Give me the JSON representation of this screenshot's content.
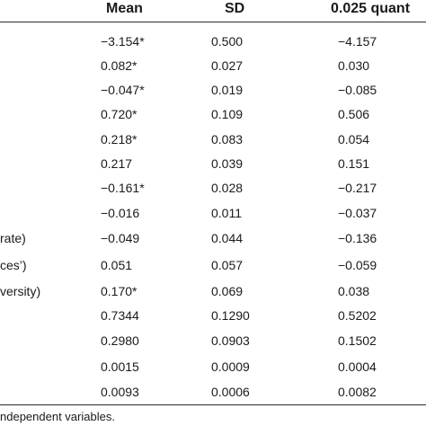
{
  "table": {
    "headers": {
      "mean": "Mean",
      "sd": "SD",
      "quant": "0.025 quant"
    },
    "rows": [
      {
        "label": "",
        "mean": "−3.154*",
        "sd": "0.500",
        "quant": "−4.157"
      },
      {
        "label": "",
        "mean": "0.082*",
        "sd": "0.027",
        "quant": "0.030"
      },
      {
        "label": "",
        "mean": "−0.047*",
        "sd": "0.019",
        "quant": "−0.085"
      },
      {
        "label": "",
        "mean": "0.720*",
        "sd": "0.109",
        "quant": "0.506"
      },
      {
        "label": "",
        "mean": "0.218*",
        "sd": "0.083",
        "quant": "0.054"
      },
      {
        "label": "",
        "mean": "0.217",
        "sd": "0.039",
        "quant": "0.151"
      },
      {
        "label": "",
        "mean": "−0.161*",
        "sd": "0.028",
        "quant": "−0.217"
      },
      {
        "label": "",
        "mean": "−0.016",
        "sd": "0.011",
        "quant": "−0.037"
      },
      {
        "label": "rate)",
        "mean": "−0.049",
        "sd": "0.044",
        "quant": "−0.136"
      },
      {
        "label": "ces’)",
        "mean": "0.051",
        "sd": "0.057",
        "quant": "−0.059"
      },
      {
        "label": "versity)",
        "mean": "0.170*",
        "sd": "0.069",
        "quant": "0.038"
      },
      {
        "label": "",
        "mean": "0.7344",
        "sd": "0.1290",
        "quant": "0.5202"
      },
      {
        "label": "",
        "mean": "0.2980",
        "sd": "0.0903",
        "quant": "0.1502"
      },
      {
        "label": "",
        "mean": "0.0015",
        "sd": "0.0009",
        "quant": "0.0004"
      },
      {
        "label": "",
        "mean": "0.0093",
        "sd": "0.0006",
        "quant": "0.0082"
      }
    ]
  },
  "footnote": "ndependent variables."
}
